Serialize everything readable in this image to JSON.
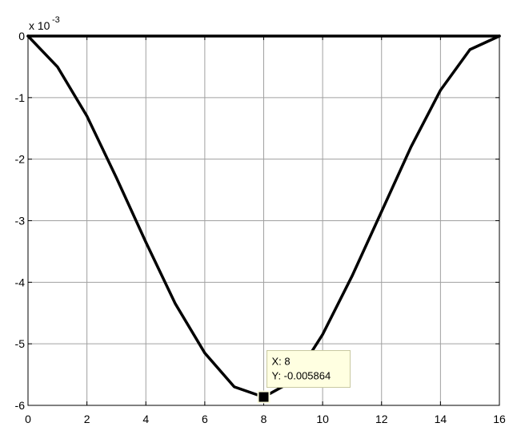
{
  "chart_data": {
    "type": "line",
    "title": "",
    "xlabel": "",
    "ylabel": "",
    "y_exponent": {
      "base": "x 10",
      "power": "-3"
    },
    "xlim": [
      0,
      16
    ],
    "ylim": [
      -6,
      0
    ],
    "grid": true,
    "x_ticks": [
      "0",
      "2",
      "4",
      "6",
      "8",
      "10",
      "12",
      "14",
      "16"
    ],
    "y_ticks": [
      "0",
      "-1",
      "-2",
      "-3",
      "-4",
      "-5",
      "-6"
    ],
    "series": [
      {
        "x": [
          0,
          16
        ],
        "y": [
          0,
          0
        ],
        "color": "#000000"
      },
      {
        "x": [
          0,
          1,
          2,
          3,
          4,
          5,
          6,
          7,
          8,
          9,
          10,
          11,
          12,
          13,
          14,
          15,
          16
        ],
        "y": [
          0,
          -0.5,
          -1.3,
          -2.3,
          -3.35,
          -4.35,
          -5.15,
          -5.7,
          -5.864,
          -5.6,
          -4.85,
          -3.9,
          -2.85,
          -1.8,
          -0.88,
          -0.22,
          0
        ],
        "color": "#000000"
      }
    ],
    "datatip": {
      "x": 8,
      "y": -5.864,
      "x_text": "X: 8",
      "y_text": "Y: -0.005864"
    }
  }
}
